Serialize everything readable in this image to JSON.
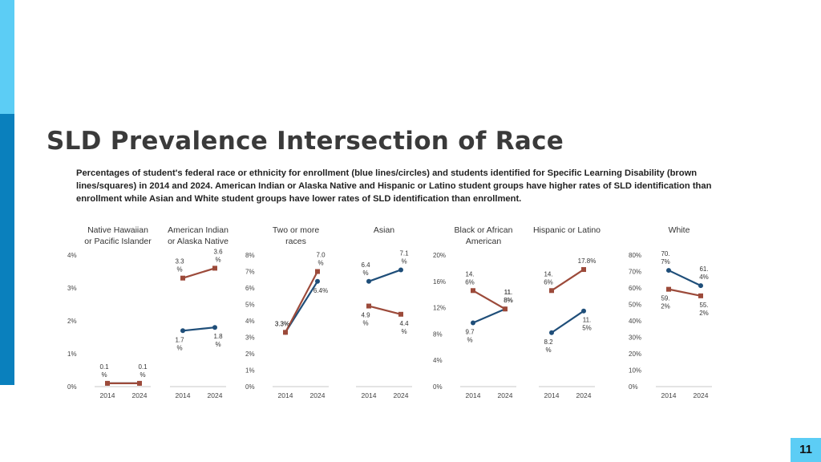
{
  "colors": {
    "accent_top": "#5ccdf5",
    "accent_bottom": "#0a80bd",
    "page_num_bg": "#5ccdf5",
    "enrollment": "#1f4e79",
    "sld": "#9c4a3a"
  },
  "title": "SLD Prevalence Intersection of Race",
  "caption": "Percentages of student's federal race or ethnicity for enrollment (blue lines/circles) and students identified for Specific Learning Disability (brown lines/squares) in 2014 and 2024. American Indian or Alaska Native and Hispanic or Latino student groups have higher rates of SLD identification than enrollment while Asian and White student groups have lower rates of SLD identification than enrollment.",
  "page_number": "11",
  "chart_data": [
    {
      "type": "line",
      "title": [
        "Native Hawaiian",
        "or Pacific Islander"
      ],
      "categories": [
        "2014",
        "2024"
      ],
      "ylim": [
        0,
        4
      ],
      "ticks": [
        "4%",
        "3%",
        "2%",
        "1%",
        "0%"
      ],
      "series": [
        {
          "values": [
            0.1,
            0.1
          ],
          "labels": [
            "0.1 %",
            "0.1 %"
          ]
        },
        {
          "values": [
            0.1,
            0.1
          ]
        }
      ]
    },
    {
      "type": "line",
      "title": [
        "American Indian",
        "or Alaska Native"
      ],
      "categories": [
        "2014",
        "2024"
      ],
      "ylim": [
        0,
        4
      ],
      "ticks": [],
      "series": [
        {
          "values": [
            1.7,
            1.8
          ],
          "labels": [
            "1.7 %",
            "1.8 %"
          ]
        },
        {
          "values": [
            3.3,
            3.6
          ],
          "labels": [
            "3.3 %",
            "3.6 %"
          ]
        }
      ]
    },
    {
      "type": "line",
      "title": [
        "Two or more",
        "races"
      ],
      "categories": [
        "2014",
        "2024"
      ],
      "ylim": [
        0,
        8
      ],
      "ticks": [
        "8%",
        "7%",
        "6%",
        "5%",
        "4%",
        "3%",
        "2%",
        "1%",
        "0%"
      ],
      "series": [
        {
          "values": [
            3.3,
            6.4
          ],
          "labels": [
            "3.3%",
            "6.4%"
          ]
        },
        {
          "values": [
            3.3,
            7.0
          ],
          "labels": [
            "3.3%",
            "7.0 %"
          ]
        }
      ]
    },
    {
      "type": "line",
      "title": [
        "Asian"
      ],
      "categories": [
        "2014",
        "2024"
      ],
      "ylim": [
        0,
        8
      ],
      "ticks": [],
      "series": [
        {
          "values": [
            6.4,
            7.1
          ],
          "labels": [
            "6.4 %",
            "7.1 %"
          ]
        },
        {
          "values": [
            4.9,
            4.4
          ],
          "labels": [
            "4.9 %",
            "4.4 %"
          ]
        }
      ]
    },
    {
      "type": "line",
      "title": [
        "Black or African",
        "American"
      ],
      "categories": [
        "2014",
        "2024"
      ],
      "ylim": [
        0,
        20
      ],
      "ticks": [
        "20%",
        "16%",
        "12%",
        "8%",
        "4%",
        "0%"
      ],
      "series": [
        {
          "values": [
            9.7,
            11.8
          ],
          "labels": [
            "9.7 %",
            "11. 8%"
          ]
        },
        {
          "values": [
            14.6,
            11.8
          ],
          "labels": [
            "14. 6%",
            "11. 8%"
          ]
        }
      ]
    },
    {
      "type": "line",
      "title": [
        "Hispanic or Latino"
      ],
      "categories": [
        "2014",
        "2024"
      ],
      "ylim": [
        0,
        20
      ],
      "ticks": [],
      "series": [
        {
          "values": [
            8.2,
            11.5
          ],
          "labels": [
            "8.2 %",
            "11. 5%"
          ]
        },
        {
          "values": [
            14.6,
            17.8
          ],
          "labels": [
            "14. 6%",
            "17.8%"
          ]
        }
      ]
    },
    {
      "type": "line",
      "title": [
        "White"
      ],
      "categories": [
        "2014",
        "2024"
      ],
      "ylim": [
        0,
        80
      ],
      "ticks": [
        "80%",
        "70%",
        "60%",
        "50%",
        "40%",
        "30%",
        "20%",
        "10%",
        "0%"
      ],
      "series": [
        {
          "values": [
            70.7,
            61.4
          ],
          "labels": [
            "70. 7%",
            "61. 4%"
          ]
        },
        {
          "values": [
            59.2,
            55.2
          ],
          "labels": [
            "59. 2%",
            "55. 2%"
          ]
        }
      ]
    }
  ]
}
